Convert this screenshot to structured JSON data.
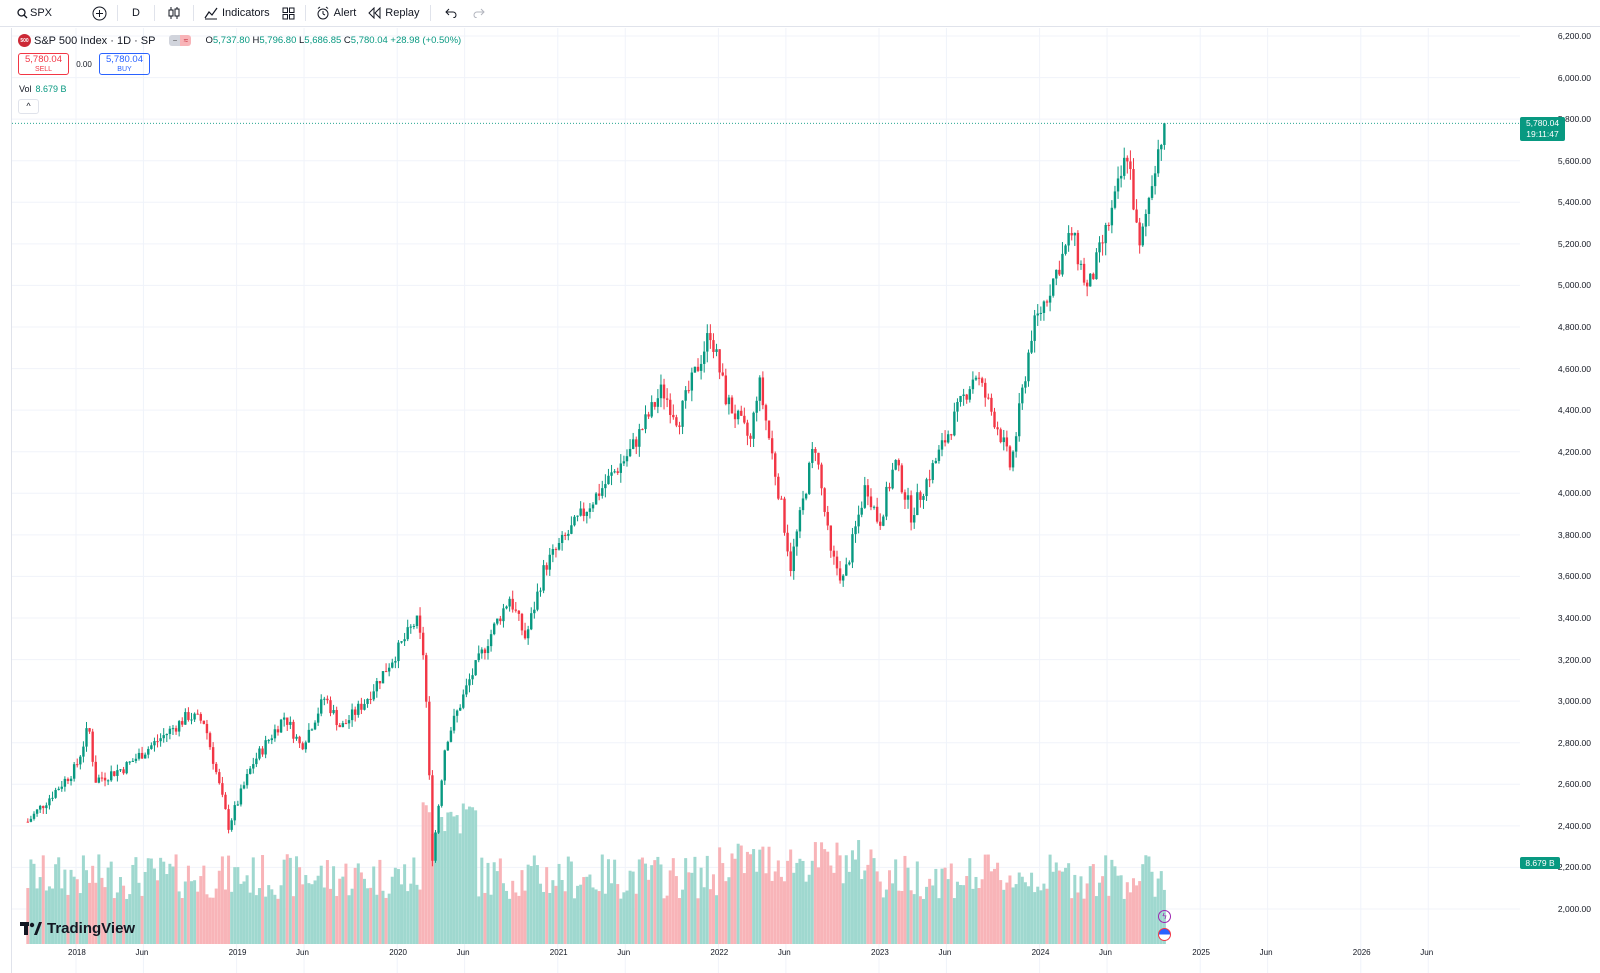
{
  "toolbar": {
    "symbol": "SPX",
    "interval": "D",
    "indicators_label": "Indicators",
    "alert_label": "Alert",
    "replay_label": "Replay"
  },
  "legend": {
    "title": "S&P 500 Index · 1D · SP",
    "logo_text": "500",
    "open_label": "O",
    "open": "5,737.80",
    "high_label": "H",
    "high": "5,796.80",
    "low_label": "L",
    "low": "5,686.85",
    "close_label": "C",
    "close": "5,780.04",
    "change": "+28.98 (+0.50%)"
  },
  "trade": {
    "sell_price": "5,780.04",
    "sell_label": "SELL",
    "spread": "0.00",
    "buy_price": "5,780.04",
    "buy_label": "BUY"
  },
  "volume": {
    "label": "Vol",
    "value": "8.679 B"
  },
  "price_tag": {
    "price": "5,780.04",
    "countdown": "19:11:47"
  },
  "volume_tag": "8.679 B",
  "branding": "TradingView",
  "colors": {
    "up": "#089981",
    "down": "#f23645",
    "up_vol": "#9fd8cf",
    "down_vol": "#f8b4b8",
    "accent": "#2962ff"
  },
  "icons": [
    "search-icon",
    "plus-circle-icon",
    "candles-icon",
    "indicators-icon",
    "layout-grid-icon",
    "alarm-clock-icon",
    "replay-icon",
    "undo-icon",
    "redo-icon",
    "chevron-up-icon",
    "lightning-icon",
    "us-flag-icon"
  ],
  "chart_data": {
    "type": "candlestick",
    "series_name": "S&P 500 Index",
    "y_ticks": [
      2000,
      2200,
      2400,
      2600,
      2800,
      3000,
      3200,
      3400,
      3600,
      3800,
      4000,
      4200,
      4400,
      4600,
      4800,
      5000,
      5200,
      5400,
      5600,
      5800,
      6000,
      6200
    ],
    "y_tick_labels": [
      "2,000.00",
      "2,200.00",
      "2,400.00",
      "2,600.00",
      "2,800.00",
      "3,000.00",
      "3,200.00",
      "3,400.00",
      "3,600.00",
      "3,800.00",
      "4,000.00",
      "4,200.00",
      "4,400.00",
      "4,600.00",
      "4,800.00",
      "5,000.00",
      "5,200.00",
      "5,400.00",
      "5,600.00",
      "5,800.00",
      "6,000.00",
      "6,200.00"
    ],
    "x_labels": [
      "2018",
      "Jun",
      "2019",
      "Jun",
      "2020",
      "Jun",
      "2021",
      "Jun",
      "2022",
      "Jun",
      "2023",
      "Jun",
      "2024",
      "Jun",
      "2025",
      "Jun",
      "2026",
      "Jun"
    ],
    "ylim": [
      1870,
      6240
    ],
    "close_path": [
      {
        "t": 2017.7,
        "v": 2420
      },
      {
        "t": 2018.0,
        "v": 2680
      },
      {
        "t": 2018.08,
        "v": 2880
      },
      {
        "t": 2018.12,
        "v": 2620
      },
      {
        "t": 2018.3,
        "v": 2680
      },
      {
        "t": 2018.7,
        "v": 2930
      },
      {
        "t": 2018.8,
        "v": 2900
      },
      {
        "t": 2018.95,
        "v": 2400
      },
      {
        "t": 2019.1,
        "v": 2700
      },
      {
        "t": 2019.3,
        "v": 2930
      },
      {
        "t": 2019.4,
        "v": 2780
      },
      {
        "t": 2019.55,
        "v": 3020
      },
      {
        "t": 2019.65,
        "v": 2870
      },
      {
        "t": 2019.8,
        "v": 3000
      },
      {
        "t": 2020.0,
        "v": 3240
      },
      {
        "t": 2020.12,
        "v": 3390
      },
      {
        "t": 2020.17,
        "v": 3200
      },
      {
        "t": 2020.22,
        "v": 2240
      },
      {
        "t": 2020.3,
        "v": 2800
      },
      {
        "t": 2020.45,
        "v": 3100
      },
      {
        "t": 2020.6,
        "v": 3350
      },
      {
        "t": 2020.7,
        "v": 3500
      },
      {
        "t": 2020.8,
        "v": 3300
      },
      {
        "t": 2020.92,
        "v": 3650
      },
      {
        "t": 2021.2,
        "v": 3950
      },
      {
        "t": 2021.45,
        "v": 4200
      },
      {
        "t": 2021.65,
        "v": 4500
      },
      {
        "t": 2021.75,
        "v": 4350
      },
      {
        "t": 2021.95,
        "v": 4780
      },
      {
        "t": 2022.05,
        "v": 4450
      },
      {
        "t": 2022.2,
        "v": 4250
      },
      {
        "t": 2022.25,
        "v": 4550
      },
      {
        "t": 2022.4,
        "v": 3900
      },
      {
        "t": 2022.45,
        "v": 3650
      },
      {
        "t": 2022.6,
        "v": 4250
      },
      {
        "t": 2022.7,
        "v": 3700
      },
      {
        "t": 2022.78,
        "v": 3580
      },
      {
        "t": 2022.92,
        "v": 4050
      },
      {
        "t": 2023.0,
        "v": 3850
      },
      {
        "t": 2023.1,
        "v": 4150
      },
      {
        "t": 2023.2,
        "v": 3900
      },
      {
        "t": 2023.35,
        "v": 4150
      },
      {
        "t": 2023.55,
        "v": 4500
      },
      {
        "t": 2023.6,
        "v": 4580
      },
      {
        "t": 2023.75,
        "v": 4300
      },
      {
        "t": 2023.82,
        "v": 4120
      },
      {
        "t": 2023.95,
        "v": 4770
      },
      {
        "t": 2024.2,
        "v": 5250
      },
      {
        "t": 2024.3,
        "v": 4970
      },
      {
        "t": 2024.45,
        "v": 5350
      },
      {
        "t": 2024.55,
        "v": 5650
      },
      {
        "t": 2024.62,
        "v": 5150
      },
      {
        "t": 2024.72,
        "v": 5600
      },
      {
        "t": 2024.78,
        "v": 5780
      }
    ]
  }
}
